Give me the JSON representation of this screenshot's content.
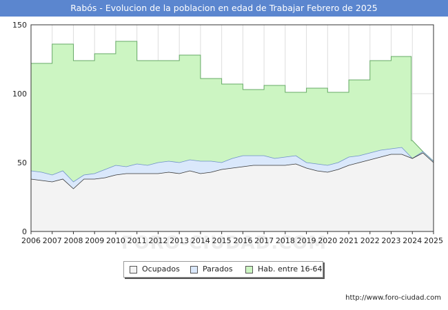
{
  "header": {
    "title": "Rabós - Evolucion de la poblacion en edad de Trabajar Febrero de 2025"
  },
  "watermark": "FORO-CIUDAD.COM",
  "footer": {
    "url": "http://www.foro-ciudad.com"
  },
  "colors": {
    "title_bg": "#5b86cf",
    "hab_fill": "#ccf5c2",
    "hab_line": "#66aa66",
    "parados_fill": "#dae8fb",
    "parados_line": "#6c8fc8",
    "ocupados_fill": "#f3f3f3",
    "ocupados_line": "#333333",
    "grid": "#dddddd"
  },
  "chart_data": {
    "type": "area",
    "title": "Rabós - Evolucion de la poblacion en edad de Trabajar Febrero de 2025",
    "xlabel": "",
    "ylabel": "",
    "xlim": [
      2006,
      2025
    ],
    "ylim": [
      0,
      150
    ],
    "yticks": [
      0,
      50,
      100,
      150
    ],
    "xticks": [
      "2006",
      "2007",
      "2008",
      "2009",
      "2010",
      "2011",
      "2012",
      "2013",
      "2014",
      "2015",
      "2016",
      "2017",
      "2018",
      "2019",
      "2020",
      "2021",
      "2022",
      "2023",
      "2024",
      "2025"
    ],
    "grid": true,
    "legend": {
      "position": "bottom",
      "entries": [
        "Ocupados",
        "Parados",
        "Hab. entre 16-64"
      ]
    },
    "series": [
      {
        "name": "Hab. entre 16-64",
        "step": true,
        "x": [
          2006,
          2007,
          2008,
          2009,
          2010,
          2011,
          2012,
          2013,
          2014,
          2015,
          2016,
          2017,
          2018,
          2019,
          2020,
          2021,
          2022,
          2023,
          2023.95
        ],
        "values": [
          122,
          136,
          124,
          129,
          138,
          124,
          124,
          128,
          111,
          107,
          103,
          106,
          101,
          104,
          101,
          110,
          124,
          127,
          66
        ]
      },
      {
        "name": "Parados",
        "x": [
          2006,
          2006.5,
          2007,
          2007.5,
          2008,
          2008.5,
          2009,
          2009.5,
          2010,
          2010.5,
          2011,
          2011.5,
          2012,
          2012.5,
          2013,
          2013.5,
          2014,
          2014.5,
          2015,
          2015.5,
          2016,
          2016.5,
          2017,
          2017.5,
          2018,
          2018.5,
          2019,
          2019.5,
          2020,
          2020.5,
          2021,
          2021.5,
          2022,
          2022.5,
          2023,
          2023.5,
          2024,
          2024.5,
          2025
        ],
        "values": [
          44,
          43,
          41,
          44,
          36,
          41,
          42,
          45,
          48,
          47,
          49,
          48,
          50,
          51,
          50,
          52,
          51,
          51,
          50,
          53,
          55,
          55,
          55,
          53,
          54,
          55,
          50,
          49,
          48,
          50,
          54,
          55,
          57,
          59,
          60,
          61,
          53,
          58,
          51
        ]
      },
      {
        "name": "Ocupados",
        "x": [
          2006,
          2006.5,
          2007,
          2007.5,
          2008,
          2008.5,
          2009,
          2009.5,
          2010,
          2010.5,
          2011,
          2011.5,
          2012,
          2012.5,
          2013,
          2013.5,
          2014,
          2014.5,
          2015,
          2015.5,
          2016,
          2016.5,
          2017,
          2017.5,
          2018,
          2018.5,
          2019,
          2019.5,
          2020,
          2020.5,
          2021,
          2021.5,
          2022,
          2022.5,
          2023,
          2023.5,
          2024,
          2024.5,
          2025
        ],
        "values": [
          38,
          37,
          36,
          38,
          31,
          38,
          38,
          39,
          41,
          42,
          42,
          42,
          42,
          43,
          42,
          44,
          42,
          43,
          45,
          46,
          47,
          48,
          48,
          48,
          48,
          49,
          46,
          44,
          43,
          45,
          48,
          50,
          52,
          54,
          56,
          56,
          53,
          57,
          50
        ]
      }
    ]
  }
}
